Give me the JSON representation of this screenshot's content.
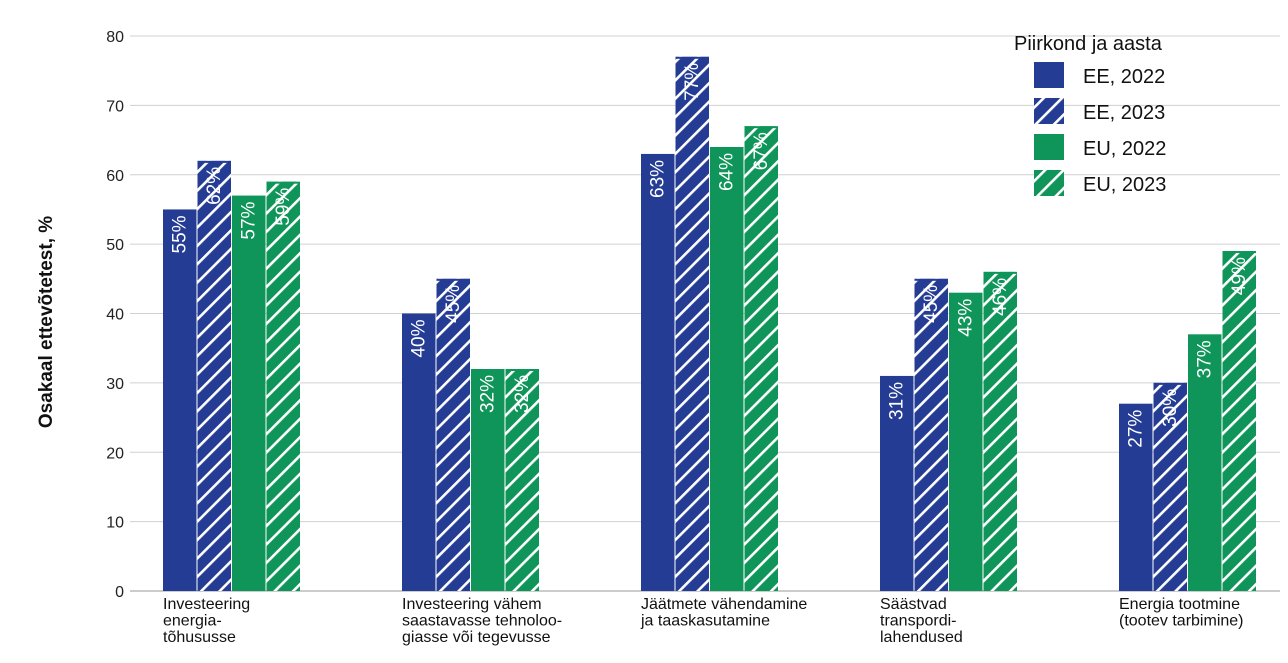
{
  "chart_data": {
    "type": "bar",
    "ylabel": "Osakaal ettevõtetest, %",
    "ylim": [
      0,
      80
    ],
    "yticks": [
      "0",
      "10",
      "20",
      "30",
      "40",
      "50",
      "60",
      "70",
      "80"
    ],
    "grid": true,
    "legend_position": "top-right",
    "legend_title": "Piirkond ja aasta",
    "categories": [
      [
        "Investeering",
        "energia-",
        "tõhususse"
      ],
      [
        "Investeering vähem",
        "saastavasse tehnoloo-",
        "giasse või tegevusse"
      ],
      [
        "Jäätmete vähendamine",
        "ja taaskasutamine"
      ],
      [
        "Säästvad",
        "transpordi-",
        "lahendused"
      ],
      [
        "Energia tootmine",
        "(tootev tarbimine)"
      ]
    ],
    "series": [
      {
        "name": "EE, 2022",
        "color": "#253c94",
        "hatched": false,
        "values": [
          55,
          40,
          63,
          31,
          27
        ],
        "labels": [
          "55%",
          "40%",
          "63%",
          "31%",
          "27%"
        ]
      },
      {
        "name": "EE, 2023",
        "color": "#253c94",
        "hatched": true,
        "values": [
          62,
          45,
          77,
          45,
          30
        ],
        "labels": [
          "62%",
          "45%",
          "77%",
          "45%",
          "30%"
        ]
      },
      {
        "name": "EU, 2022",
        "color": "#0f9559",
        "hatched": false,
        "values": [
          57,
          32,
          64,
          43,
          37
        ],
        "labels": [
          "57%",
          "32%",
          "64%",
          "43%",
          "37%"
        ]
      },
      {
        "name": "EU, 2023",
        "color": "#0f9559",
        "hatched": true,
        "values": [
          59,
          32,
          67,
          46,
          49
        ],
        "labels": [
          "59%",
          "32%",
          "67%",
          "46%",
          "49%"
        ]
      }
    ]
  }
}
